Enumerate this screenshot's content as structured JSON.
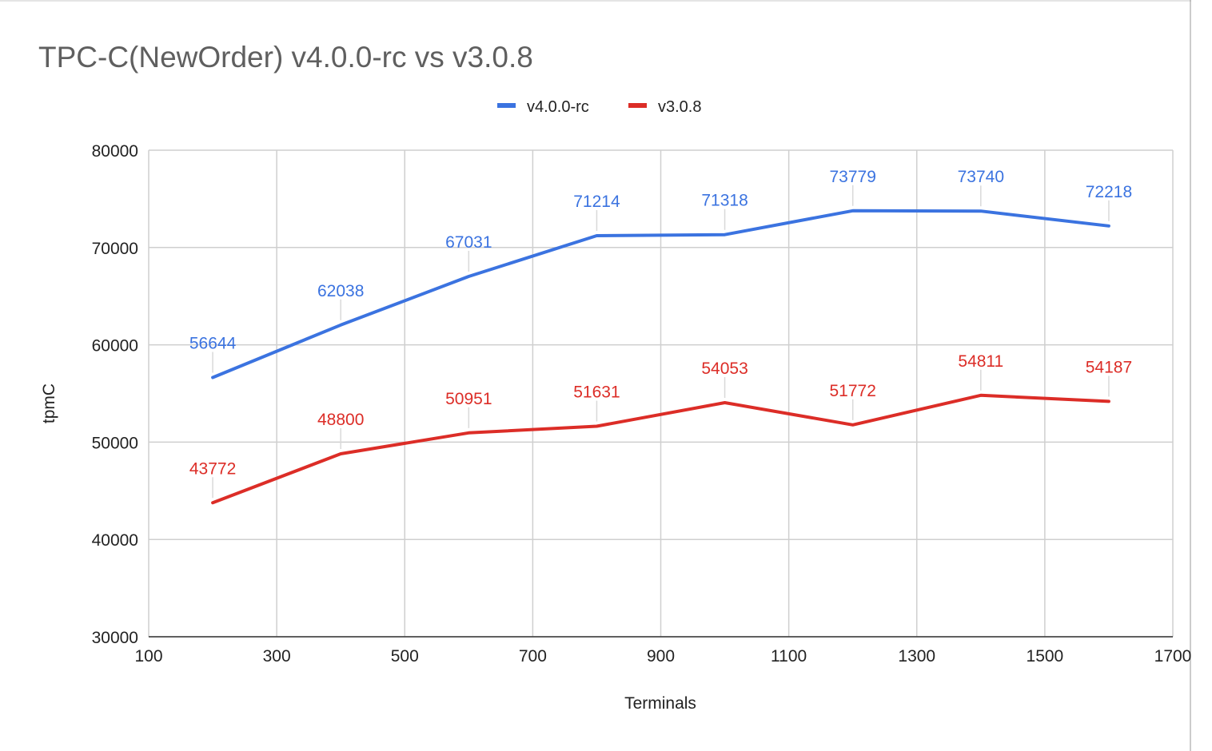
{
  "chart_data": {
    "type": "line",
    "title": "TPC-C(NewOrder) v4.0.0-rc vs v3.0.8",
    "xlabel": "Terminals",
    "ylabel": "tpmC",
    "x": [
      200,
      400,
      600,
      800,
      1000,
      1200,
      1400,
      1600
    ],
    "xlim": [
      100,
      1700
    ],
    "xticks": [
      100,
      300,
      500,
      700,
      900,
      1100,
      1300,
      1500,
      1700
    ],
    "ylim": [
      30000,
      80000
    ],
    "yticks": [
      30000,
      40000,
      50000,
      60000,
      70000,
      80000
    ],
    "grid": true,
    "legend_position": "top-center",
    "series": [
      {
        "name": "v4.0.0-rc",
        "color": "#3b73e0",
        "values": [
          56644,
          62038,
          67031,
          71214,
          71318,
          73779,
          73740,
          72218
        ]
      },
      {
        "name": "v3.0.8",
        "color": "#dc2d27",
        "values": [
          43772,
          48800,
          50951,
          51631,
          54053,
          51772,
          54811,
          54187
        ]
      }
    ]
  }
}
